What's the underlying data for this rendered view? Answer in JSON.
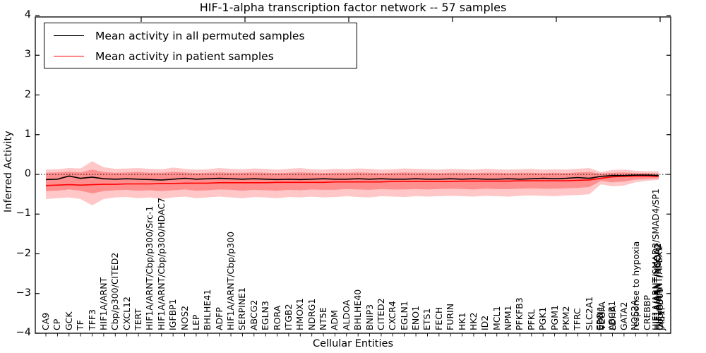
{
  "title": "HIF-1-alpha transcription factor network -- 57 samples",
  "legend": {
    "items": [
      {
        "label": "Mean activity in all permuted samples",
        "color": "#000000"
      },
      {
        "label": "Mean activity in patient samples",
        "color": "#ff0000"
      }
    ]
  },
  "axes": {
    "x": {
      "label": "Cellular Entities"
    },
    "y": {
      "label": "Inferred Activity",
      "ticks": [
        "4",
        "3",
        "2",
        "1",
        "0",
        "−1",
        "−2",
        "−3",
        "−4"
      ],
      "min": -4,
      "max": 4
    }
  },
  "chart_data": {
    "type": "line",
    "title": "HIF-1-alpha transcription factor network -- 57 samples",
    "xlabel": "Cellular Entities",
    "ylabel": "Inferred Activity",
    "ylim": [
      -4,
      4
    ],
    "grid": false,
    "legend_position": "upper left",
    "zero_reference_line": 0,
    "categories": [
      [
        "CA9"
      ],
      [
        "CP"
      ],
      [
        "GCK"
      ],
      [
        "TF"
      ],
      [
        "TFF3"
      ],
      [
        "HIF1A/ARNT"
      ],
      [
        "Cbp/p300/CITED2"
      ],
      [
        "CXCL12"
      ],
      [
        "TERT"
      ],
      [
        "HIF1A/ARNT/Cbp/p300/Src-1"
      ],
      [
        "HIF1A/ARNT/Cbp/p300/HDAC7"
      ],
      [
        "IGFBP1"
      ],
      [
        "NOS2"
      ],
      [
        "LEP"
      ],
      [
        "BHLHE41"
      ],
      [
        "ADFP"
      ],
      [
        "HIF1A/ARNT/Cbp/p300"
      ],
      [
        "SERPINE1"
      ],
      [
        "ABCG2"
      ],
      [
        "EGLN3"
      ],
      [
        "RORA"
      ],
      [
        "ITGB2"
      ],
      [
        "HMOX1"
      ],
      [
        "NDRG1"
      ],
      [
        "NT5E"
      ],
      [
        "ADM"
      ],
      [
        "ALDOA"
      ],
      [
        "BHLHE40"
      ],
      [
        "BNIP3"
      ],
      [
        "CITED2"
      ],
      [
        "CXCR4"
      ],
      [
        "EGLN1"
      ],
      [
        "ENO1"
      ],
      [
        "ETS1"
      ],
      [
        "FECH"
      ],
      [
        "FURIN"
      ],
      [
        "HK1"
      ],
      [
        "HK2"
      ],
      [
        "ID2"
      ],
      [
        "MCL1"
      ],
      [
        "NPM1"
      ],
      [
        "PFKFB3"
      ],
      [
        "PFKL"
      ],
      [
        "PGK1"
      ],
      [
        "PGM1"
      ],
      [
        "PKM2"
      ],
      [
        "TFRC"
      ],
      [
        "SLC2A1"
      ],
      [
        "EPO",
        "EDN1",
        "VEGFA"
      ],
      [
        "ABCB1",
        "LDHA"
      ],
      [
        "GATA2"
      ],
      [
        "NOS2A",
        "response to hypoxia"
      ],
      [
        "CREBBP"
      ],
      [
        "HIF1A/ARNT/SMAD3/SMAD4/SP1",
        "HIF1A/ARNT/NCOA1",
        "HIF1A/ARNT/NCOA2",
        "HIF1A/ARNT/APEX1",
        "Cbp/p300",
        "JAB1"
      ]
    ],
    "series": [
      {
        "name": "Mean activity in all permuted samples",
        "color": "#000000",
        "values": [
          -0.13,
          -0.12,
          -0.04,
          -0.1,
          -0.07,
          -0.11,
          -0.12,
          -0.11,
          -0.12,
          -0.13,
          -0.14,
          -0.12,
          -0.1,
          -0.12,
          -0.11,
          -0.1,
          -0.11,
          -0.12,
          -0.11,
          -0.12,
          -0.13,
          -0.12,
          -0.13,
          -0.12,
          -0.11,
          -0.12,
          -0.12,
          -0.11,
          -0.12,
          -0.11,
          -0.12,
          -0.12,
          -0.11,
          -0.12,
          -0.12,
          -0.11,
          -0.12,
          -0.11,
          -0.12,
          -0.12,
          -0.11,
          -0.12,
          -0.11,
          -0.1,
          -0.11,
          -0.1,
          -0.08,
          -0.1,
          -0.05,
          -0.03,
          -0.03,
          -0.02,
          -0.02,
          -0.03
        ]
      },
      {
        "name": "Mean activity in patient samples",
        "color": "#ff0000",
        "values": [
          -0.28,
          -0.27,
          -0.26,
          -0.27,
          -0.26,
          -0.25,
          -0.25,
          -0.24,
          -0.24,
          -0.24,
          -0.23,
          -0.23,
          -0.22,
          -0.22,
          -0.22,
          -0.21,
          -0.21,
          -0.21,
          -0.21,
          -0.21,
          -0.2,
          -0.2,
          -0.2,
          -0.2,
          -0.2,
          -0.19,
          -0.19,
          -0.19,
          -0.19,
          -0.19,
          -0.18,
          -0.18,
          -0.18,
          -0.18,
          -0.18,
          -0.18,
          -0.17,
          -0.17,
          -0.17,
          -0.17,
          -0.17,
          -0.16,
          -0.16,
          -0.16,
          -0.16,
          -0.16,
          -0.15,
          -0.14,
          -0.1,
          -0.06,
          -0.05,
          -0.04,
          -0.04,
          -0.05
        ]
      }
    ],
    "bands": [
      {
        "name": "permuted-range-outer",
        "color": "rgba(255,0,0,0.22)",
        "top": [
          0.12,
          0.13,
          0.16,
          0.15,
          0.33,
          0.18,
          0.14,
          0.15,
          0.16,
          0.14,
          0.13,
          0.17,
          0.14,
          0.12,
          0.13,
          0.16,
          0.14,
          0.13,
          0.15,
          0.14,
          0.12,
          0.14,
          0.16,
          0.13,
          0.12,
          0.14,
          0.13,
          0.15,
          0.14,
          0.12,
          0.13,
          0.15,
          0.14,
          0.13,
          0.12,
          0.14,
          0.13,
          0.12,
          0.14,
          0.13,
          0.12,
          0.13,
          0.14,
          0.12,
          0.13,
          0.12,
          0.14,
          0.16,
          0.06,
          0.11,
          0.12,
          0.09,
          0.08,
          0.08
        ],
        "bottom": [
          -0.62,
          -0.6,
          -0.58,
          -0.62,
          -0.78,
          -0.62,
          -0.58,
          -0.57,
          -0.6,
          -0.58,
          -0.62,
          -0.58,
          -0.56,
          -0.6,
          -0.58,
          -0.56,
          -0.58,
          -0.6,
          -0.57,
          -0.58,
          -0.6,
          -0.57,
          -0.58,
          -0.56,
          -0.58,
          -0.57,
          -0.55,
          -0.57,
          -0.58,
          -0.55,
          -0.56,
          -0.57,
          -0.55,
          -0.56,
          -0.55,
          -0.54,
          -0.55,
          -0.56,
          -0.54,
          -0.55,
          -0.56,
          -0.54,
          -0.53,
          -0.54,
          -0.55,
          -0.53,
          -0.52,
          -0.5,
          -0.25,
          -0.3,
          -0.28,
          -0.2,
          -0.16,
          -0.14
        ]
      },
      {
        "name": "permuted-range-inner",
        "color": "rgba(255,0,0,0.28)",
        "top": [
          0.04,
          0.05,
          0.07,
          0.05,
          0.12,
          0.06,
          0.04,
          0.05,
          0.06,
          0.04,
          0.04,
          0.06,
          0.05,
          0.03,
          0.04,
          0.05,
          0.04,
          0.04,
          0.05,
          0.04,
          0.03,
          0.04,
          0.05,
          0.04,
          0.03,
          0.04,
          0.04,
          0.05,
          0.04,
          0.03,
          0.04,
          0.05,
          0.04,
          0.04,
          0.03,
          0.04,
          0.04,
          0.03,
          0.04,
          0.04,
          0.03,
          0.04,
          0.04,
          0.03,
          0.04,
          0.03,
          0.05,
          0.06,
          0.02,
          0.04,
          0.05,
          0.03,
          0.03,
          0.02
        ],
        "bottom": [
          -0.42,
          -0.41,
          -0.38,
          -0.41,
          -0.48,
          -0.42,
          -0.4,
          -0.39,
          -0.41,
          -0.4,
          -0.42,
          -0.4,
          -0.38,
          -0.41,
          -0.4,
          -0.38,
          -0.39,
          -0.41,
          -0.39,
          -0.4,
          -0.41,
          -0.39,
          -0.4,
          -0.38,
          -0.39,
          -0.39,
          -0.37,
          -0.38,
          -0.39,
          -0.37,
          -0.38,
          -0.38,
          -0.37,
          -0.38,
          -0.37,
          -0.36,
          -0.37,
          -0.38,
          -0.36,
          -0.37,
          -0.37,
          -0.36,
          -0.35,
          -0.36,
          -0.36,
          -0.35,
          -0.34,
          -0.32,
          -0.16,
          -0.2,
          -0.18,
          -0.13,
          -0.11,
          -0.1
        ]
      }
    ]
  }
}
